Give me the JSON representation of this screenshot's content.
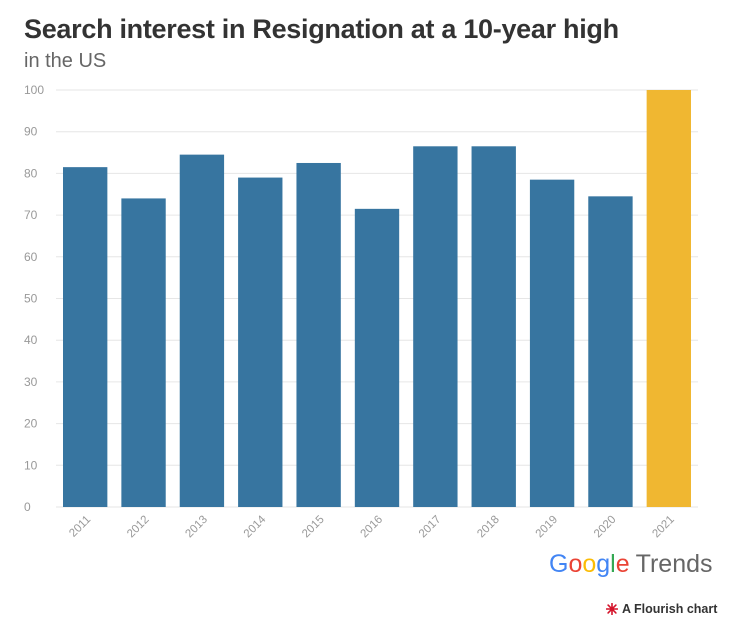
{
  "chart_data": {
    "type": "bar",
    "title": "Search interest in Resignation at a 10-year high",
    "subtitle": "in the US",
    "categories": [
      "2011",
      "2012",
      "2013",
      "2014",
      "2015",
      "2016",
      "2017",
      "2018",
      "2019",
      "2020",
      "2021"
    ],
    "values": [
      81.5,
      74,
      84.5,
      79,
      82.5,
      71.5,
      86.5,
      86.5,
      78.5,
      74.5,
      100
    ],
    "highlight_index": 10,
    "ylim": [
      0,
      100
    ],
    "yticks": [
      0,
      10,
      20,
      30,
      40,
      50,
      60,
      70,
      80,
      90,
      100
    ],
    "xlabel": "",
    "ylabel": "",
    "grid": true,
    "colors": {
      "bar": "#3775a0",
      "highlight": "#f0b731",
      "grid": "#e6e6e6",
      "tick": "#999999"
    }
  },
  "logo": {
    "letters": [
      "G",
      "o",
      "o",
      "g",
      "l",
      "e"
    ],
    "letter_colors": [
      "#4285F4",
      "#EA4335",
      "#FBBC05",
      "#4285F4",
      "#34A853",
      "#EA4335"
    ],
    "suffix": "Trends"
  },
  "credit": {
    "text": "A Flourish chart",
    "icon": "flourish-burst-icon",
    "icon_color": "#d4132a"
  }
}
